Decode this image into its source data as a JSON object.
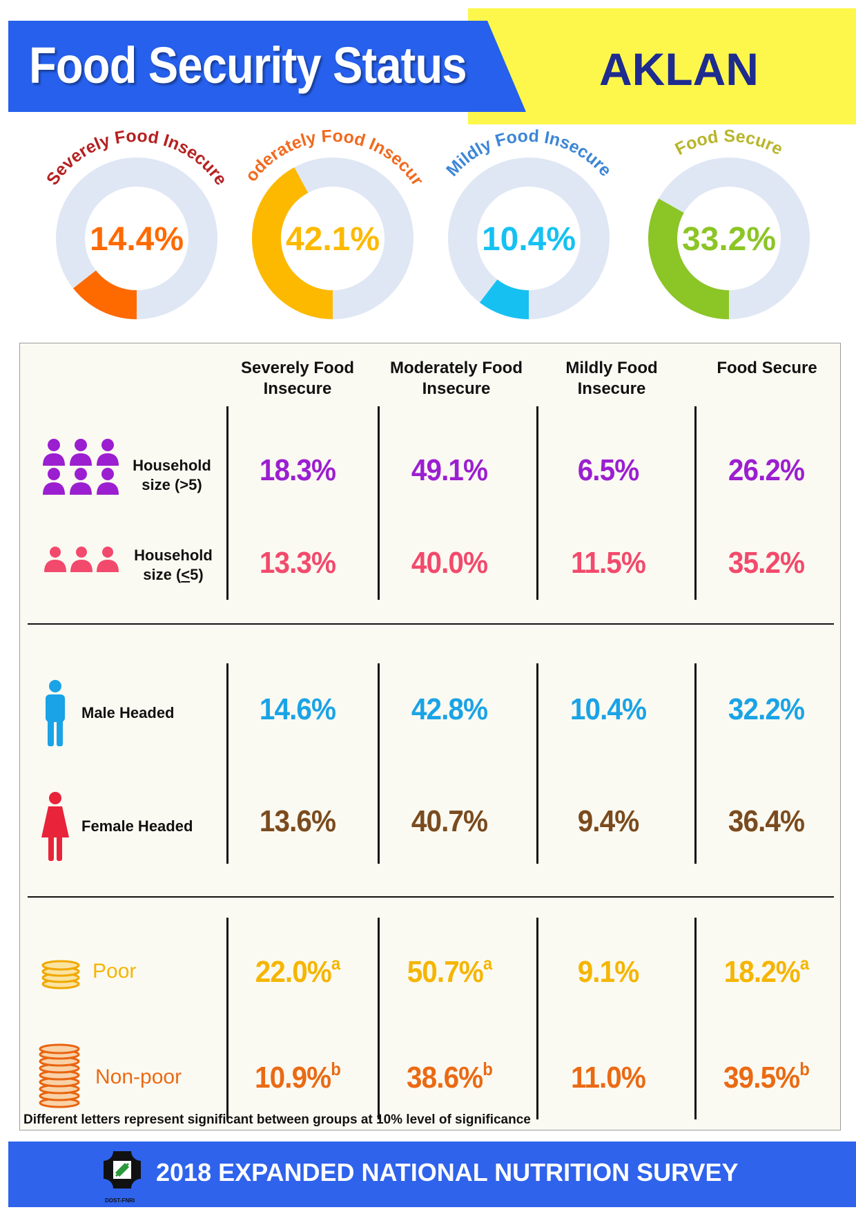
{
  "header": {
    "title": "Food Security Status",
    "province": "AKLAN"
  },
  "chart_data": [
    {
      "type": "pie",
      "variant": "donut",
      "title": "",
      "slices": [
        {
          "name": "Severely Food Insecure",
          "value": 14.4,
          "label": "14.4%",
          "color": "#fe6a00",
          "title_color": "#b52121"
        },
        {
          "name": "Moderately Food Insecure",
          "value": 42.1,
          "label": "42.1%",
          "color": "#fdb900",
          "title_color": "#f06a1e"
        },
        {
          "name": "Mildly Food Insecure",
          "value": 10.4,
          "label": "10.4%",
          "color": "#16c1f2",
          "title_color": "#3d86d6"
        },
        {
          "name": "Food Secure",
          "value": 33.2,
          "label": "33.2%",
          "color": "#8cc526",
          "title_color": "#b7b52a"
        }
      ],
      "track_color": "#dfe7f4"
    },
    {
      "type": "table",
      "columns": [
        "Severely Food\nInsecure",
        "Moderately Food\nInsecure",
        "Mildly Food\nInsecure",
        "Food Secure"
      ],
      "groups": [
        {
          "rows": [
            {
              "label": "Household\nsize (>5)",
              "icon": "household-large-icon",
              "color": "#9b1fd0",
              "values": [
                "18.3%",
                "49.1%",
                "6.5%",
                "26.2%"
              ],
              "letters": [
                "",
                "",
                "",
                ""
              ]
            },
            {
              "label": "Household\nsize (<5)",
              "icon": "household-small-icon",
              "color": "#f24a6c",
              "values": [
                "13.3%",
                "40.0%",
                "11.5%",
                "35.2%"
              ],
              "letters": [
                "",
                "",
                "",
                ""
              ]
            }
          ]
        },
        {
          "rows": [
            {
              "label": "Male Headed",
              "icon": "male-icon",
              "color": "#1aa3e6",
              "values": [
                "14.6%",
                "42.8%",
                "10.4%",
                "32.2%"
              ],
              "letters": [
                "",
                "",
                "",
                ""
              ]
            },
            {
              "label": "Female Headed",
              "icon": "female-icon",
              "color": "#7a4b1f",
              "values": [
                "13.6%",
                "40.7%",
                "9.4%",
                "36.4%"
              ],
              "letters": [
                "",
                "",
                "",
                ""
              ]
            }
          ]
        },
        {
          "rows": [
            {
              "label": "Poor",
              "icon": "coins-small-icon",
              "color": "#f5b500",
              "values": [
                "22.0%",
                "50.7%",
                "9.1%",
                "18.2%"
              ],
              "letters": [
                "a",
                "a",
                "",
                "a"
              ]
            },
            {
              "label": "Non-poor",
              "icon": "coins-large-icon",
              "color": "#ea6a14",
              "values": [
                "10.9%",
                "38.6%",
                "11.0%",
                "39.5%"
              ],
              "letters": [
                "b",
                "b",
                "",
                "b"
              ]
            }
          ]
        }
      ]
    }
  ],
  "footnote": "Different letters represent significant between groups at 10% level of significance",
  "footer": {
    "text": "2018 EXPANDED NATIONAL NUTRITION SURVEY",
    "logo_caption": "DOST-FNRI"
  }
}
